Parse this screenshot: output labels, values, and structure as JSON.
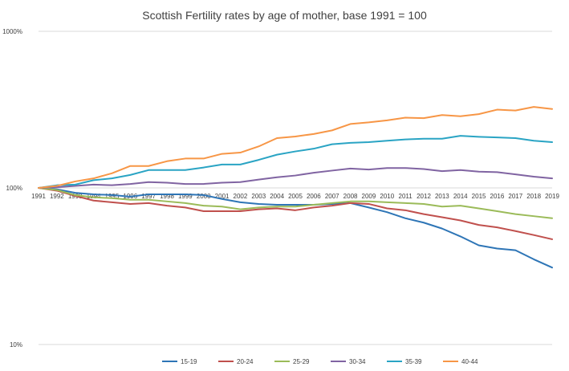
{
  "chart_data": {
    "type": "line",
    "title": "Scottish Fertility rates by age of mother, base 1991 = 100",
    "xlabel": "",
    "ylabel": "",
    "y_scale": "log",
    "ylim": [
      10,
      1000
    ],
    "y_ticks": [
      {
        "value": 1000,
        "label": "1000%"
      },
      {
        "value": 100,
        "label": "100%"
      },
      {
        "value": 10,
        "label": "10%"
      }
    ],
    "grid": true,
    "legend_position": "bottom",
    "categories": [
      "1991",
      "1992",
      "1993",
      "1994",
      "1995",
      "1996",
      "1997",
      "1998",
      "1999",
      "2000",
      "2001",
      "2002",
      "2003",
      "2004",
      "2005",
      "2006",
      "2007",
      "2008",
      "2009",
      "2010",
      "2011",
      "2012",
      "2013",
      "2014",
      "2015",
      "2016",
      "2017",
      "2018",
      "2019"
    ],
    "series": [
      {
        "name": "15-19",
        "color": "#2E75B6",
        "values": [
          100,
          98,
          93,
          91,
          90,
          88,
          91,
          91,
          91,
          90,
          85,
          81,
          79,
          78,
          78,
          78,
          79,
          80,
          75,
          70,
          64,
          60,
          55,
          49,
          43,
          41,
          40,
          35,
          31
        ]
      },
      {
        "name": "20-24",
        "color": "#C0504D",
        "values": [
          100,
          96,
          89,
          83,
          81,
          79,
          80,
          77,
          75,
          71,
          71,
          71,
          73,
          74,
          72,
          75,
          77,
          80,
          79,
          74,
          72,
          68,
          65,
          62,
          58,
          56,
          53,
          50,
          47
        ]
      },
      {
        "name": "25-29",
        "color": "#9BBB59",
        "values": [
          100,
          97,
          90,
          87,
          86,
          84,
          84,
          82,
          80,
          77,
          76,
          73,
          75,
          76,
          76,
          78,
          80,
          82,
          82,
          81,
          80,
          79,
          76,
          77,
          74,
          71,
          68,
          66,
          64
        ]
      },
      {
        "name": "30-34",
        "color": "#8064A2",
        "values": [
          100,
          101,
          103,
          105,
          104,
          106,
          109,
          108,
          106,
          106,
          108,
          109,
          113,
          117,
          120,
          125,
          129,
          133,
          131,
          134,
          134,
          132,
          128,
          130,
          127,
          126,
          122,
          118,
          115
        ]
      },
      {
        "name": "35-39",
        "color": "#2AA4C4",
        "values": [
          100,
          104,
          105,
          112,
          115,
          121,
          130,
          130,
          130,
          135,
          141,
          141,
          151,
          163,
          171,
          178,
          190,
          194,
          196,
          200,
          204,
          206,
          206,
          215,
          212,
          210,
          208,
          200,
          196
        ]
      },
      {
        "name": "40-44",
        "color": "#F79646",
        "values": [
          100,
          103,
          110,
          115,
          124,
          138,
          138,
          148,
          154,
          154,
          165,
          168,
          184,
          208,
          213,
          221,
          233,
          256,
          262,
          270,
          281,
          279,
          292,
          287,
          296,
          316,
          312,
          329,
          319
        ]
      }
    ]
  }
}
